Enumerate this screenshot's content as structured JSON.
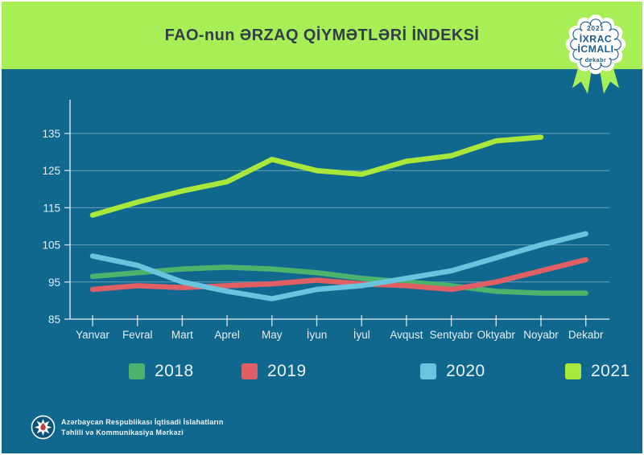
{
  "page": {
    "title": "FAO-nun ƏRZAQ QİYMƏTLƏRİ İNDEKSİ"
  },
  "colors": {
    "background": "#10688f",
    "banner": "#a8ee57",
    "title_text": "#333e48",
    "badge_text": "#1a5a8c",
    "ribbon": "#a8ee57",
    "axis_text": "#e6edf2",
    "legend_text": "#eaf1f5",
    "grid": "rgba(255,255,255,0.38)",
    "axis_line": "rgba(255,255,255,0.75)"
  },
  "badge": {
    "year": "2021",
    "line1": "İXRAC",
    "line2": "İCMALI",
    "month": "dekabr"
  },
  "chart_data": {
    "type": "line",
    "title": "FAO-nun ƏRZAQ QİYMƏTLƏRİ İNDEKSİ",
    "categories": [
      "Yanvar",
      "Fevral",
      "Mart",
      "Aprel",
      "May",
      "İyun",
      "İyul",
      "Avqust",
      "Sentyabr",
      "Oktyabr",
      "Noyabr",
      "Dekabr"
    ],
    "series": [
      {
        "name": "2018",
        "color": "#4cb36d",
        "values": [
          96.5,
          97.5,
          98.5,
          99,
          98.5,
          97.5,
          96,
          95,
          94,
          92.5,
          92,
          92
        ]
      },
      {
        "name": "2019",
        "color": "#e05f64",
        "values": [
          93,
          94,
          93.5,
          94,
          94.5,
          95.5,
          94.5,
          94,
          93,
          95,
          98,
          101
        ]
      },
      {
        "name": "2020",
        "color": "#69c4dd",
        "values": [
          102,
          99.5,
          95,
          92.5,
          90.5,
          93,
          94,
          96,
          98,
          101.5,
          105,
          108
        ]
      },
      {
        "name": "2021",
        "color": "#a9e83b",
        "values": [
          113,
          116.5,
          119.5,
          122,
          128,
          125,
          124,
          127.5,
          129,
          133,
          134,
          null
        ]
      }
    ],
    "ylim": [
      85,
      138
    ],
    "yticks": [
      85,
      95,
      105,
      115,
      125,
      135
    ],
    "grid": true,
    "legend_position": "bottom"
  },
  "legend": {
    "items": [
      "2018",
      "2019",
      "2020",
      "2021"
    ]
  },
  "footer": {
    "line1": "Azərbaycan Respublikası İqtisadi İslahatların",
    "line2": "Təhlili və Kommunikasiya Mərkəzi"
  }
}
